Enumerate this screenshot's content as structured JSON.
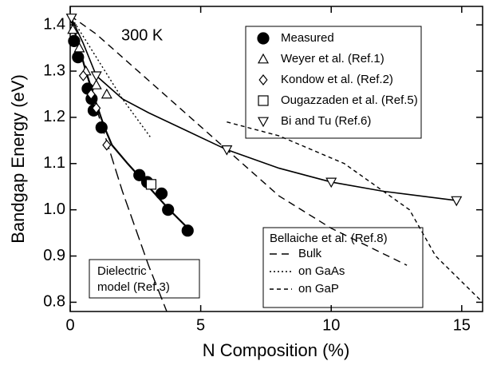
{
  "chart_data": {
    "type": "scatter",
    "annotation": "300 K",
    "xlabel": "N Composition (%)",
    "ylabel": "Bandgap Energy (eV)",
    "xlim": [
      0,
      15.8
    ],
    "ylim": [
      0.78,
      1.44
    ],
    "xticks": [
      0,
      5,
      10,
      15
    ],
    "yticks": [
      0.8,
      0.9,
      {
        "value": 1,
        "label": "1.0"
      },
      1.1,
      1.2,
      1.3,
      1.4
    ],
    "series": [
      {
        "name": "Measured",
        "marker": "circle-filled",
        "color": "#000",
        "x": [
          0.15,
          0.3,
          0.67,
          0.82,
          0.9,
          1.2,
          2.65,
          2.95,
          3.5,
          3.75,
          4.5
        ],
        "y": [
          1.365,
          1.33,
          1.262,
          1.24,
          1.215,
          1.178,
          1.075,
          1.06,
          1.035,
          1.0,
          0.955
        ]
      },
      {
        "name": "Weyer et al. (Ref.1)",
        "marker": "triangle-up",
        "color": "#000",
        "x": [
          0.1,
          0.35,
          0.6,
          1.0,
          1.4
        ],
        "y": [
          1.39,
          1.35,
          1.3,
          1.27,
          1.25
        ]
      },
      {
        "name": "Kondow et al. (Ref.2)",
        "marker": "diamond",
        "color": "#000",
        "x": [
          0.5,
          0.8,
          1.0,
          1.4
        ],
        "y": [
          1.29,
          1.25,
          1.22,
          1.14
        ]
      },
      {
        "name": "Ougazzaden et al. (Ref.5)",
        "marker": "square",
        "color": "#000",
        "x": [
          3.1
        ],
        "y": [
          1.055
        ]
      },
      {
        "name": "Bi and Tu (Ref.6)",
        "marker": "triangle-down",
        "color": "#000",
        "x": [
          0.05,
          1.0,
          6.0,
          10.0,
          14.8
        ],
        "y": [
          1.415,
          1.29,
          1.13,
          1.06,
          1.02
        ]
      }
    ],
    "curves": [
      {
        "style": "solid",
        "width": 1.6,
        "x": [
          0,
          0.5,
          1,
          2,
          3,
          4.5,
          6,
          8,
          10,
          12,
          14.8
        ],
        "y": [
          1.42,
          1.36,
          1.29,
          1.24,
          1.21,
          1.17,
          1.13,
          1.09,
          1.06,
          1.04,
          1.02
        ]
      },
      {
        "style": "solid",
        "width": 2.2,
        "x": [
          0,
          0.3,
          0.6,
          1,
          1.3,
          1.6,
          2.2,
          3,
          3.8,
          4.6
        ],
        "y": [
          1.42,
          1.36,
          1.3,
          1.23,
          1.18,
          1.14,
          1.1,
          1.05,
          1.0,
          0.955
        ]
      },
      {
        "style": "dielectric",
        "width": 1.4,
        "x": [
          0,
          1,
          2,
          3,
          3.7
        ],
        "y": [
          1.42,
          1.22,
          1.04,
          0.88,
          0.78
        ]
      }
    ],
    "legend2": {
      "title": "Bellaiche et al. (Ref.8)",
      "entries": [
        {
          "name": "Bulk",
          "style": "bulk",
          "x": [
            0,
            1,
            3,
            6,
            8,
            10,
            12.9
          ],
          "y": [
            1.42,
            1.38,
            1.28,
            1.13,
            1.03,
            0.96,
            0.88
          ]
        },
        {
          "name": "on GaAs",
          "style": "dotted",
          "x": [
            0,
            1,
            2,
            3.1
          ],
          "y": [
            1.42,
            1.33,
            1.24,
            1.155
          ]
        },
        {
          "name": "on GaP",
          "style": "gap",
          "x": [
            6,
            8,
            10.5,
            13,
            14,
            15.8
          ],
          "y": [
            1.19,
            1.16,
            1.1,
            1.0,
            0.9,
            0.8
          ]
        }
      ]
    },
    "dielectric_label": [
      "Dielectric",
      "model (Ref.3)"
    ]
  }
}
